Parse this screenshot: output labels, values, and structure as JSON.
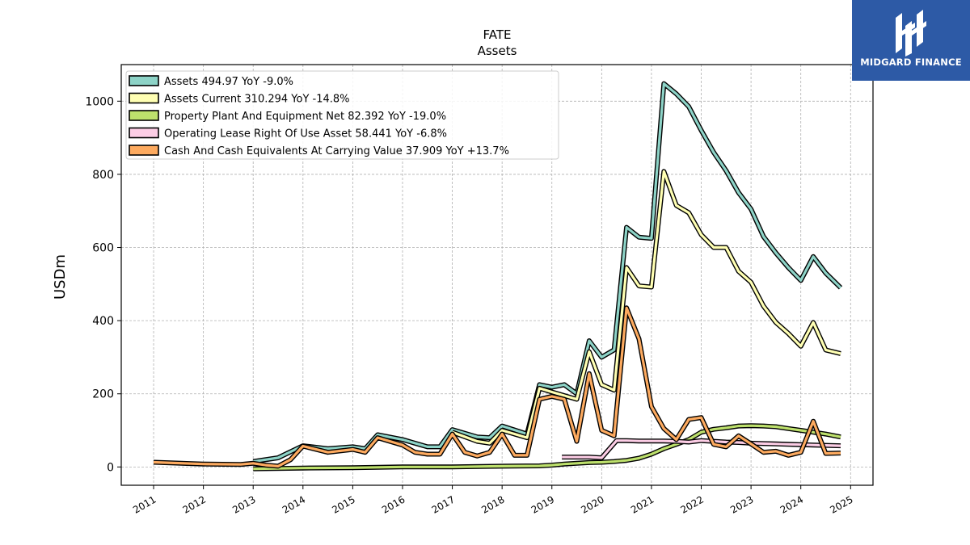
{
  "brand": {
    "name": "MIDGARD FINANCE",
    "color": "#2d5aa6"
  },
  "chart_data": {
    "type": "line",
    "title": "FATE",
    "subtitle": "Assets",
    "ylabel": "USDm",
    "xlabel": "",
    "xlim": [
      2010.35,
      2025.45
    ],
    "ylim": [
      -50,
      1100
    ],
    "yticks": [
      0,
      200,
      400,
      600,
      800,
      1000
    ],
    "xticks": [
      2011,
      2012,
      2013,
      2014,
      2015,
      2016,
      2017,
      2018,
      2019,
      2020,
      2021,
      2022,
      2023,
      2024,
      2025
    ],
    "grid": true,
    "legend_position": "top-left",
    "series": [
      {
        "name": "Assets",
        "legend": "Assets  494.97 YoY -9.0%",
        "color": "#8dd3c7",
        "points": [
          [
            2013.0,
            15
          ],
          [
            2013.5,
            25
          ],
          [
            2014.0,
            58
          ],
          [
            2014.5,
            50
          ],
          [
            2015.0,
            55
          ],
          [
            2015.25,
            50
          ],
          [
            2015.5,
            88
          ],
          [
            2016.0,
            75
          ],
          [
            2016.5,
            55
          ],
          [
            2016.75,
            55
          ],
          [
            2017.0,
            102
          ],
          [
            2017.5,
            82
          ],
          [
            2017.75,
            80
          ],
          [
            2018.0,
            112
          ],
          [
            2018.5,
            90
          ],
          [
            2018.75,
            225
          ],
          [
            2019.0,
            218
          ],
          [
            2019.25,
            225
          ],
          [
            2019.5,
            200
          ],
          [
            2019.75,
            345
          ],
          [
            2020.0,
            300
          ],
          [
            2020.25,
            320
          ],
          [
            2020.5,
            655
          ],
          [
            2020.75,
            628
          ],
          [
            2021.0,
            625
          ],
          [
            2021.25,
            1048
          ],
          [
            2021.5,
            1020
          ],
          [
            2021.75,
            985
          ],
          [
            2022.0,
            920
          ],
          [
            2022.25,
            860
          ],
          [
            2022.5,
            810
          ],
          [
            2022.75,
            750
          ],
          [
            2023.0,
            705
          ],
          [
            2023.25,
            630
          ],
          [
            2023.5,
            585
          ],
          [
            2023.75,
            545
          ],
          [
            2024.0,
            510
          ],
          [
            2024.25,
            575
          ],
          [
            2024.5,
            530
          ],
          [
            2024.8,
            490
          ]
        ]
      },
      {
        "name": "Assets Current",
        "legend": "Assets Current  310.294 YoY -14.8%",
        "color": "#ffffb3",
        "points": [
          [
            2017.0,
            95
          ],
          [
            2017.5,
            70
          ],
          [
            2017.75,
            65
          ],
          [
            2018.0,
            100
          ],
          [
            2018.5,
            80
          ],
          [
            2018.75,
            215
          ],
          [
            2019.0,
            205
          ],
          [
            2019.5,
            185
          ],
          [
            2019.75,
            315
          ],
          [
            2020.0,
            225
          ],
          [
            2020.25,
            210
          ],
          [
            2020.5,
            545
          ],
          [
            2020.75,
            495
          ],
          [
            2021.0,
            492
          ],
          [
            2021.25,
            808
          ],
          [
            2021.5,
            715
          ],
          [
            2021.75,
            695
          ],
          [
            2022.0,
            635
          ],
          [
            2022.25,
            600
          ],
          [
            2022.5,
            600
          ],
          [
            2022.75,
            535
          ],
          [
            2023.0,
            505
          ],
          [
            2023.25,
            440
          ],
          [
            2023.5,
            395
          ],
          [
            2023.75,
            365
          ],
          [
            2024.0,
            330
          ],
          [
            2024.25,
            395
          ],
          [
            2024.5,
            320
          ],
          [
            2024.8,
            310
          ]
        ]
      },
      {
        "name": "Property Plant And Equipment Net",
        "legend": "Property Plant And Equipment Net  82.392 YoY -19.0%",
        "color": "#bde06c",
        "points": [
          [
            2013.0,
            -5
          ],
          [
            2014.0,
            -3
          ],
          [
            2015.0,
            -2
          ],
          [
            2016.0,
            0
          ],
          [
            2017.0,
            0
          ],
          [
            2018.0,
            2
          ],
          [
            2018.75,
            3
          ],
          [
            2019.0,
            5
          ],
          [
            2019.25,
            8
          ],
          [
            2019.5,
            10
          ],
          [
            2019.75,
            12
          ],
          [
            2020.0,
            13
          ],
          [
            2020.25,
            15
          ],
          [
            2020.5,
            18
          ],
          [
            2020.75,
            24
          ],
          [
            2021.0,
            35
          ],
          [
            2021.25,
            50
          ],
          [
            2021.5,
            62
          ],
          [
            2021.75,
            75
          ],
          [
            2022.0,
            95
          ],
          [
            2022.25,
            103
          ],
          [
            2022.5,
            107
          ],
          [
            2022.75,
            112
          ],
          [
            2023.0,
            113
          ],
          [
            2023.25,
            112
          ],
          [
            2023.5,
            110
          ],
          [
            2023.75,
            105
          ],
          [
            2024.0,
            100
          ],
          [
            2024.25,
            95
          ],
          [
            2024.5,
            90
          ],
          [
            2024.8,
            82
          ]
        ]
      },
      {
        "name": "Operating Lease Right Of Use Asset",
        "legend": "Operating Lease Right Of Use Asset  58.441 YoY -6.8%",
        "color": "#fccde5",
        "points": [
          [
            2019.2,
            27
          ],
          [
            2019.5,
            27
          ],
          [
            2019.75,
            27
          ],
          [
            2020.0,
            25
          ],
          [
            2020.3,
            72
          ],
          [
            2020.5,
            72
          ],
          [
            2020.75,
            71
          ],
          [
            2021.0,
            71
          ],
          [
            2021.25,
            71
          ],
          [
            2021.5,
            70
          ],
          [
            2021.75,
            68
          ],
          [
            2022.0,
            72
          ],
          [
            2022.25,
            70
          ],
          [
            2022.5,
            68
          ],
          [
            2022.75,
            67
          ],
          [
            2023.0,
            65
          ],
          [
            2023.25,
            64
          ],
          [
            2023.5,
            63
          ],
          [
            2023.75,
            62
          ],
          [
            2024.0,
            61
          ],
          [
            2024.25,
            60
          ],
          [
            2024.5,
            59
          ],
          [
            2024.8,
            58
          ]
        ]
      },
      {
        "name": "Cash And Cash Equivalents At Carrying Value",
        "legend": "Cash And Cash Equivalents At Carrying Value  37.909 YoY +13.7%",
        "color": "#fdaa5f",
        "points": [
          [
            2011.0,
            13
          ],
          [
            2012.0,
            8
          ],
          [
            2012.75,
            7
          ],
          [
            2013.0,
            10
          ],
          [
            2013.25,
            5
          ],
          [
            2013.5,
            2
          ],
          [
            2013.75,
            20
          ],
          [
            2014.0,
            57
          ],
          [
            2014.5,
            40
          ],
          [
            2015.0,
            48
          ],
          [
            2015.25,
            40
          ],
          [
            2015.5,
            80
          ],
          [
            2016.0,
            60
          ],
          [
            2016.25,
            40
          ],
          [
            2016.5,
            35
          ],
          [
            2016.75,
            35
          ],
          [
            2017.0,
            90
          ],
          [
            2017.25,
            40
          ],
          [
            2017.5,
            30
          ],
          [
            2017.75,
            40
          ],
          [
            2018.0,
            90
          ],
          [
            2018.25,
            32
          ],
          [
            2018.5,
            32
          ],
          [
            2018.75,
            185
          ],
          [
            2019.0,
            193
          ],
          [
            2019.25,
            185
          ],
          [
            2019.5,
            70
          ],
          [
            2019.75,
            255
          ],
          [
            2020.0,
            100
          ],
          [
            2020.25,
            85
          ],
          [
            2020.5,
            435
          ],
          [
            2020.75,
            350
          ],
          [
            2021.0,
            165
          ],
          [
            2021.25,
            105
          ],
          [
            2021.5,
            75
          ],
          [
            2021.75,
            130
          ],
          [
            2022.0,
            135
          ],
          [
            2022.25,
            62
          ],
          [
            2022.5,
            55
          ],
          [
            2022.75,
            85
          ],
          [
            2023.0,
            63
          ],
          [
            2023.25,
            40
          ],
          [
            2023.5,
            43
          ],
          [
            2023.75,
            32
          ],
          [
            2024.0,
            40
          ],
          [
            2024.25,
            125
          ],
          [
            2024.5,
            37
          ],
          [
            2024.8,
            38
          ]
        ]
      }
    ]
  }
}
